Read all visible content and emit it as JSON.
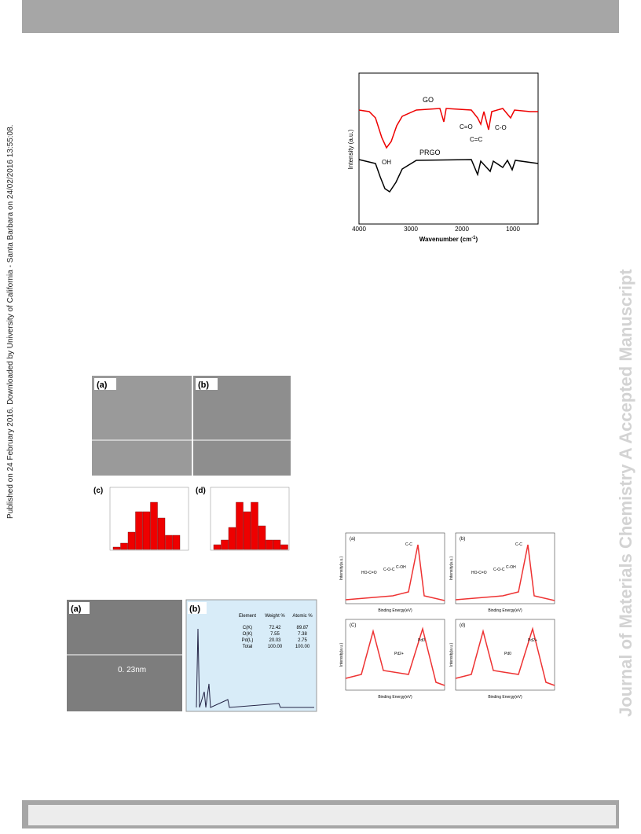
{
  "side_note": "Published on 24 February 2016. Downloaded by University of California - Santa Barbara on 24/02/2016 13:55:08.",
  "watermark": "Journal of Materials Chemistry A Accepted Manuscript",
  "ftir": {
    "y_label": "Intensity (a.u.)",
    "x_label": "Wavenumber (cm",
    "x_label_sup": "-1",
    "x_label_end": ")",
    "ticks": [
      "4000",
      "3000",
      "2000",
      "1000"
    ],
    "annotations": {
      "go": "GO",
      "prgo": "PRGO",
      "co": "C=O",
      "cc": "C=C",
      "c_o": "C-O",
      "oh": "OH"
    }
  },
  "tem": {
    "panels": [
      "(a)",
      "(b)",
      "(c)",
      "(d)"
    ]
  },
  "eds": {
    "panels": [
      "(a)",
      "(b)"
    ],
    "scale": "0. 23nm",
    "table": {
      "header": [
        "Element",
        "Weight %",
        "Atomic %"
      ],
      "rows": [
        [
          "C(K)",
          "72.42",
          "89.87"
        ],
        [
          "O(K)",
          "7.55",
          "7.38"
        ],
        [
          "Pd(L)",
          "20.03",
          "2.75"
        ],
        [
          "Total",
          "100.00",
          "100.00"
        ]
      ]
    }
  },
  "xps": {
    "x_label": "Binding Energy(eV)",
    "y_label": "Intensity(a.u.)",
    "panels": [
      {
        "label": "(a)",
        "peaks": [
          "C-C",
          "C-OH",
          "C-O-C",
          "HO-C=O"
        ]
      },
      {
        "label": "(b)",
        "peaks": [
          "C-C",
          "C-OH",
          "C-O-C",
          "HO-C=O"
        ]
      },
      {
        "label": "(C)",
        "peaks": [
          "Pd0",
          "Pd2+"
        ]
      },
      {
        "label": "(d)",
        "peaks": [
          "Pd2+",
          "Pd0"
        ]
      }
    ]
  }
}
